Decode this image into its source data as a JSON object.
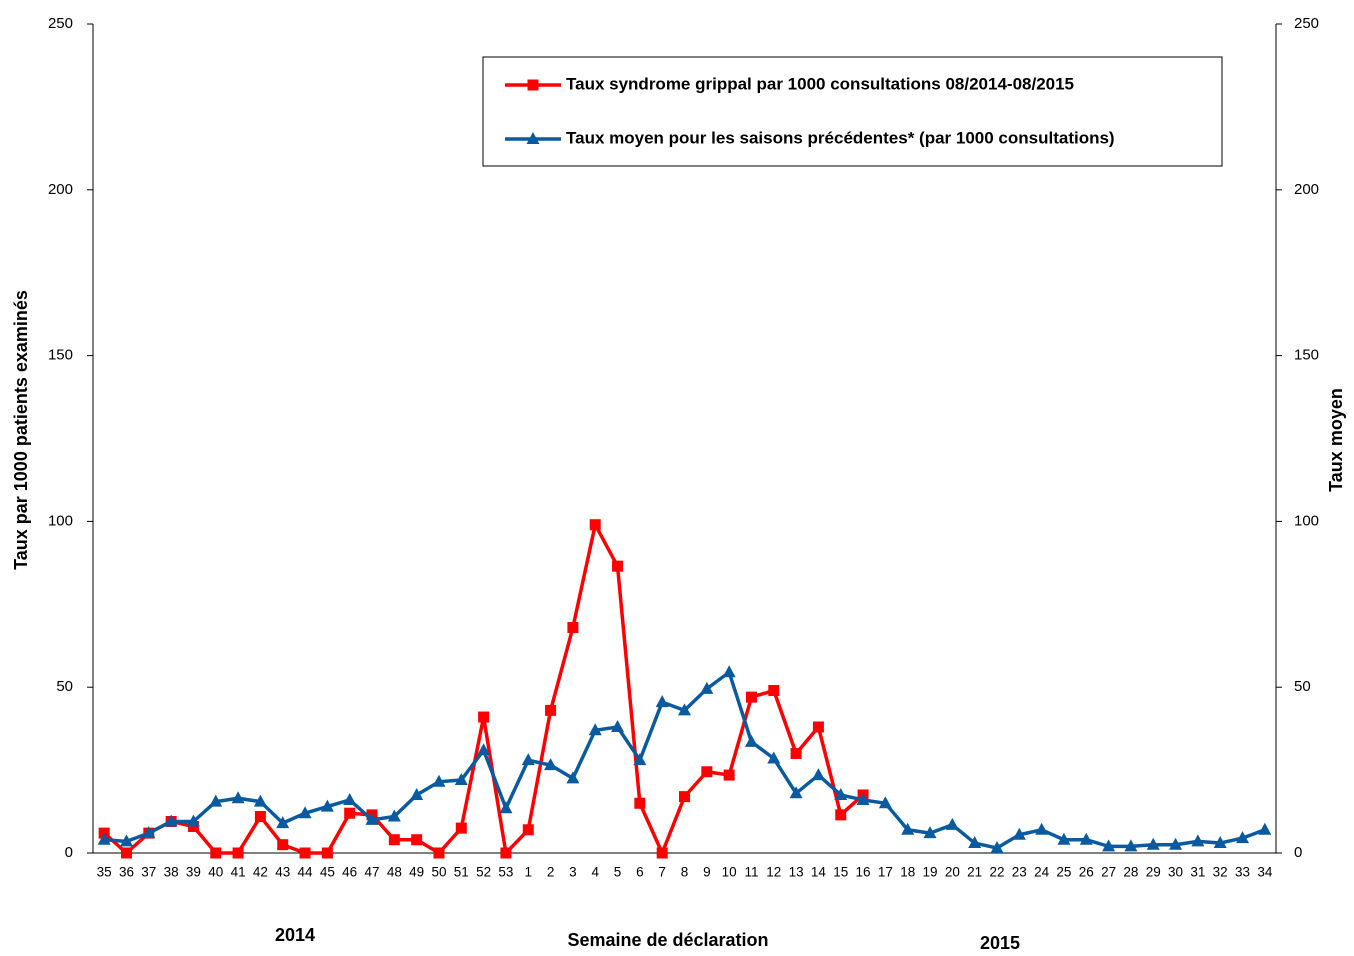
{
  "chart_data": {
    "type": "line",
    "xlabel": "Semaine de déclaration",
    "ylabel": "Taux par 1000 patients examinés",
    "y2label": "Taux moyen",
    "annotations": [
      "2014",
      "2015"
    ],
    "categories": [
      "35",
      "36",
      "37",
      "38",
      "39",
      "40",
      "41",
      "42",
      "43",
      "44",
      "45",
      "46",
      "47",
      "48",
      "49",
      "50",
      "51",
      "52",
      "53",
      "1",
      "2",
      "3",
      "4",
      "5",
      "6",
      "7",
      "8",
      "9",
      "10",
      "11",
      "12",
      "13",
      "14",
      "15",
      "16",
      "17",
      "18",
      "19",
      "20",
      "21",
      "22",
      "23",
      "24",
      "25",
      "26",
      "27",
      "28",
      "29",
      "30",
      "31",
      "32",
      "33",
      "34"
    ],
    "series": [
      {
        "name": "Taux syndrome grippal par 1000 consultations 08/2014-08/2015",
        "color": "#ff0000",
        "marker": "square",
        "values": [
          6,
          0,
          6,
          9.5,
          8,
          0,
          0,
          11,
          2.5,
          0,
          0,
          12,
          11.5,
          4,
          4,
          0,
          7.5,
          41,
          0,
          7,
          43,
          68,
          99,
          86.5,
          15,
          0,
          17,
          24.5,
          23.5,
          47,
          49,
          30,
          38,
          11.5,
          17.5,
          null,
          null,
          null,
          null,
          null,
          null,
          null,
          null,
          null,
          null,
          null,
          null,
          null,
          null,
          null,
          null,
          null,
          null
        ]
      },
      {
        "name": "Taux moyen pour les saisons précédentes* (par 1000 consultations)",
        "color": "#0a5aa0",
        "marker": "triangle",
        "axis": "y2",
        "values": [
          4,
          3.5,
          6,
          9.5,
          9.5,
          15.5,
          16.5,
          15.5,
          9,
          12,
          14,
          16,
          10,
          11,
          17.5,
          21.5,
          22,
          31,
          13.5,
          28,
          26.5,
          22.5,
          37,
          38,
          28,
          45.5,
          43,
          49.5,
          54.5,
          33.5,
          28.5,
          18,
          23.5,
          17.5,
          16,
          15,
          7,
          6,
          8.5,
          3,
          1.5,
          5.5,
          7,
          4,
          4,
          2,
          2,
          2.5,
          2.5,
          3.5,
          3,
          4.5,
          7
        ]
      }
    ],
    "ylim": [
      0,
      250
    ],
    "yticks": [
      0,
      50,
      100,
      150,
      200,
      250
    ],
    "y2lim": [
      0,
      250
    ],
    "y2ticks": [
      0,
      50,
      100,
      150,
      200,
      250
    ],
    "grid": false,
    "legend": "top-right"
  }
}
